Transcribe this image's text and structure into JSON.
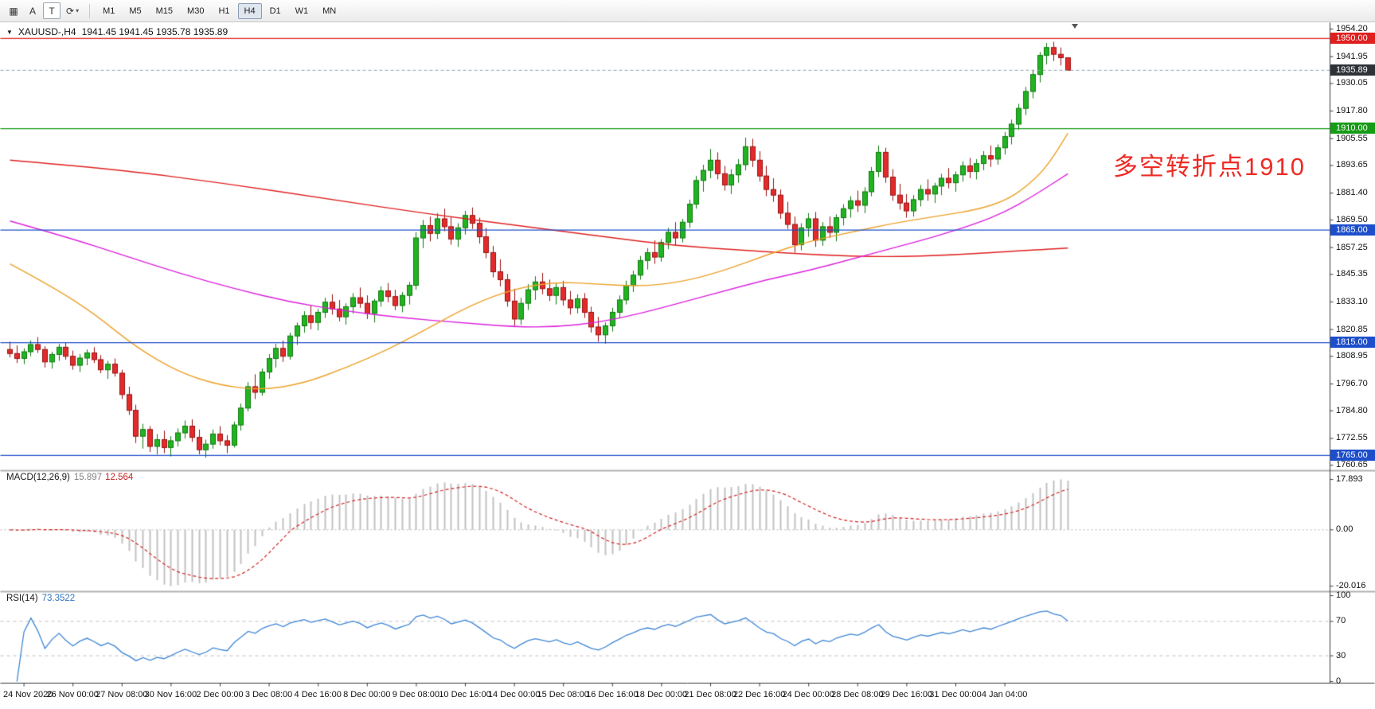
{
  "toolbar": {
    "icon_buttons": [
      {
        "name": "charts-grid",
        "glyph": "▦"
      },
      {
        "name": "text-annotation",
        "glyph": "A"
      },
      {
        "name": "template",
        "glyph": "T"
      },
      {
        "name": "cycle",
        "glyph": "⟳"
      }
    ],
    "timeframes": [
      "M1",
      "M5",
      "M15",
      "M30",
      "H1",
      "H4",
      "D1",
      "W1",
      "MN"
    ],
    "active_timeframe": "H4"
  },
  "chart": {
    "symbol_title": "XAUUSD-,H4",
    "ohlc_text": "1941.45 1941.45 1935.78 1935.89",
    "annotation": {
      "text": "多空转折点1910",
      "color": "#ee2b25"
    }
  },
  "indicators": {
    "macd": {
      "label": "MACD(12,26,9)",
      "main": "15.897",
      "signal": "12.564",
      "scale_labels": [
        "17.893",
        "0.00",
        "-20.016"
      ],
      "scale_values": [
        17.893,
        0,
        -20.016
      ]
    },
    "rsi": {
      "label": "RSI(14)",
      "value": "73.3522",
      "scale_labels": [
        "100",
        "70",
        "30",
        "0"
      ],
      "scale_values": [
        100,
        70,
        30,
        0
      ],
      "levels": [
        70,
        30
      ]
    }
  },
  "chart_data": {
    "type": "candlestick",
    "title": "XAUUSD-,H4",
    "timeframe": "H4",
    "last_ohlc": {
      "open": 1941.45,
      "high": 1941.45,
      "low": 1935.78,
      "close": 1935.89
    },
    "bid": {
      "price": 1935.89,
      "label": "1935.89",
      "color": "#2f3338"
    },
    "y_axis": {
      "range": [
        1760.65,
        1954.2
      ],
      "ticks": [
        "1954.20",
        "1941.95",
        "1930.05",
        "1917.80",
        "1905.55",
        "1893.65",
        "1881.40",
        "1869.50",
        "1857.25",
        "1845.35",
        "1833.10",
        "1820.85",
        "1808.95",
        "1796.70",
        "1784.80",
        "1772.55",
        "1760.65"
      ]
    },
    "time_labels": [
      "24 Nov 2020",
      "26 Nov 00:00",
      "27 Nov 08:00",
      "30 Nov 16:00",
      "2 Dec 00:00",
      "3 Dec 08:00",
      "4 Dec 16:00",
      "8 Dec 00:00",
      "9 Dec 08:00",
      "10 Dec 16:00",
      "14 Dec 00:00",
      "15 Dec 08:00",
      "16 Dec 16:00",
      "18 Dec 00:00",
      "21 Dec 08:00",
      "22 Dec 16:00",
      "24 Dec 00:00",
      "28 Dec 08:00",
      "29 Dec 16:00",
      "31 Dec 00:00",
      "4 Jan 04:00"
    ],
    "horizontal_lines": [
      {
        "price": 1950.0,
        "label": "1950.00",
        "color": "#e01f1f"
      },
      {
        "price": 1910.0,
        "label": "1910.00",
        "color": "#169b16"
      },
      {
        "price": 1865.0,
        "label": "1865.00",
        "color": "#1d4ecb"
      },
      {
        "price": 1815.0,
        "label": "1815.00",
        "color": "#1d4ecb"
      },
      {
        "price": 1765.0,
        "label": "1765.00",
        "color": "#1d4ecb"
      }
    ],
    "moving_averages": [
      {
        "name": "ma-slow-red",
        "color": "#e02222",
        "points": [
          [
            0,
            1896
          ],
          [
            15,
            1892
          ],
          [
            30,
            1886
          ],
          [
            45,
            1879
          ],
          [
            60,
            1872
          ],
          [
            75,
            1866
          ],
          [
            85,
            1862
          ],
          [
            95,
            1858
          ],
          [
            105,
            1856
          ],
          [
            115,
            1854
          ],
          [
            125,
            1853
          ],
          [
            135,
            1854
          ],
          [
            145,
            1856
          ],
          [
            151,
            1857
          ]
        ]
      },
      {
        "name": "ma-mid-magenta",
        "color": "#dd22dd",
        "points": [
          [
            0,
            1869
          ],
          [
            8,
            1862
          ],
          [
            16,
            1854
          ],
          [
            24,
            1846
          ],
          [
            32,
            1839
          ],
          [
            40,
            1833
          ],
          [
            48,
            1829
          ],
          [
            56,
            1826
          ],
          [
            64,
            1824
          ],
          [
            72,
            1822
          ],
          [
            78,
            1822
          ],
          [
            84,
            1824
          ],
          [
            90,
            1828
          ],
          [
            96,
            1833
          ],
          [
            102,
            1838
          ],
          [
            108,
            1843
          ],
          [
            114,
            1847
          ],
          [
            120,
            1852
          ],
          [
            126,
            1857
          ],
          [
            132,
            1862
          ],
          [
            138,
            1868
          ],
          [
            142,
            1873
          ],
          [
            146,
            1880
          ],
          [
            151,
            1890
          ]
        ]
      },
      {
        "name": "ma-fast-orange",
        "color": "#eda22a",
        "points": [
          [
            0,
            1850
          ],
          [
            6,
            1840
          ],
          [
            12,
            1828
          ],
          [
            18,
            1813
          ],
          [
            24,
            1802
          ],
          [
            30,
            1796
          ],
          [
            36,
            1794
          ],
          [
            42,
            1797
          ],
          [
            48,
            1804
          ],
          [
            54,
            1812
          ],
          [
            60,
            1822
          ],
          [
            66,
            1832
          ],
          [
            72,
            1839
          ],
          [
            78,
            1842
          ],
          [
            84,
            1841
          ],
          [
            90,
            1840
          ],
          [
            96,
            1842
          ],
          [
            102,
            1847
          ],
          [
            108,
            1854
          ],
          [
            114,
            1860
          ],
          [
            120,
            1864
          ],
          [
            126,
            1868
          ],
          [
            132,
            1871
          ],
          [
            138,
            1874
          ],
          [
            142,
            1878
          ],
          [
            145,
            1884
          ],
          [
            148,
            1893
          ],
          [
            151,
            1908
          ]
        ]
      }
    ],
    "candles": [
      [
        1812.0,
        1815.5,
        1808.5,
        1810.2
      ],
      [
        1810.2,
        1813.8,
        1806.0,
        1808.0
      ],
      [
        1808.0,
        1812.5,
        1805.5,
        1811.0
      ],
      [
        1811.0,
        1816.0,
        1809.0,
        1814.2
      ],
      [
        1814.2,
        1817.5,
        1810.5,
        1812.0
      ],
      [
        1812.0,
        1813.5,
        1804.0,
        1806.5
      ],
      [
        1806.5,
        1811.0,
        1803.5,
        1809.8
      ],
      [
        1809.8,
        1814.5,
        1807.0,
        1813.0
      ],
      [
        1813.0,
        1815.0,
        1807.5,
        1809.0
      ],
      [
        1809.0,
        1811.5,
        1803.0,
        1805.0
      ],
      [
        1805.0,
        1810.0,
        1802.0,
        1808.2
      ],
      [
        1808.2,
        1812.0,
        1805.0,
        1810.5
      ],
      [
        1810.5,
        1813.0,
        1806.0,
        1807.5
      ],
      [
        1807.5,
        1809.5,
        1801.5,
        1803.0
      ],
      [
        1803.0,
        1807.0,
        1799.0,
        1805.5
      ],
      [
        1805.5,
        1808.0,
        1800.0,
        1801.5
      ],
      [
        1801.5,
        1803.0,
        1790.0,
        1792.0
      ],
      [
        1792.0,
        1795.5,
        1783.0,
        1785.0
      ],
      [
        1785.0,
        1787.5,
        1770.5,
        1773.5
      ],
      [
        1773.5,
        1779.0,
        1768.0,
        1776.5
      ],
      [
        1776.5,
        1778.0,
        1766.5,
        1769.0
      ],
      [
        1769.0,
        1774.5,
        1765.5,
        1772.0
      ],
      [
        1772.0,
        1776.0,
        1766.0,
        1768.5
      ],
      [
        1768.5,
        1773.5,
        1764.5,
        1771.5
      ],
      [
        1771.5,
        1777.0,
        1769.0,
        1775.0
      ],
      [
        1775.0,
        1780.5,
        1772.5,
        1778.0
      ],
      [
        1778.0,
        1781.0,
        1771.0,
        1773.0
      ],
      [
        1773.0,
        1776.5,
        1765.5,
        1767.5
      ],
      [
        1767.5,
        1772.0,
        1764.0,
        1770.0
      ],
      [
        1770.0,
        1776.5,
        1768.0,
        1774.5
      ],
      [
        1774.5,
        1778.0,
        1769.5,
        1771.5
      ],
      [
        1771.5,
        1774.0,
        1766.0,
        1769.5
      ],
      [
        1769.5,
        1780.0,
        1768.5,
        1778.5
      ],
      [
        1778.5,
        1788.0,
        1776.0,
        1786.0
      ],
      [
        1786.0,
        1797.5,
        1784.5,
        1795.5
      ],
      [
        1795.5,
        1801.0,
        1790.0,
        1793.0
      ],
      [
        1793.0,
        1803.5,
        1791.5,
        1802.0
      ],
      [
        1802.0,
        1810.0,
        1799.0,
        1808.0
      ],
      [
        1808.0,
        1814.5,
        1804.0,
        1812.5
      ],
      [
        1812.5,
        1816.0,
        1806.5,
        1809.0
      ],
      [
        1809.0,
        1819.5,
        1807.5,
        1818.0
      ],
      [
        1818.0,
        1824.0,
        1814.0,
        1822.5
      ],
      [
        1822.5,
        1829.0,
        1819.5,
        1827.0
      ],
      [
        1827.0,
        1831.5,
        1821.0,
        1824.0
      ],
      [
        1824.0,
        1830.0,
        1820.5,
        1828.5
      ],
      [
        1828.5,
        1835.0,
        1826.0,
        1833.0
      ],
      [
        1833.0,
        1836.5,
        1827.5,
        1830.0
      ],
      [
        1830.0,
        1834.0,
        1824.5,
        1826.5
      ],
      [
        1826.5,
        1832.5,
        1823.0,
        1831.0
      ],
      [
        1831.0,
        1837.0,
        1828.0,
        1835.0
      ],
      [
        1835.0,
        1839.5,
        1830.5,
        1832.5
      ],
      [
        1832.5,
        1836.0,
        1825.5,
        1828.0
      ],
      [
        1828.0,
        1834.5,
        1824.0,
        1833.5
      ],
      [
        1833.5,
        1840.0,
        1831.0,
        1838.0
      ],
      [
        1838.0,
        1841.5,
        1833.0,
        1835.5
      ],
      [
        1835.5,
        1838.5,
        1829.5,
        1831.5
      ],
      [
        1831.5,
        1837.5,
        1828.5,
        1836.0
      ],
      [
        1836.0,
        1842.0,
        1832.0,
        1840.5
      ],
      [
        1840.5,
        1864.0,
        1838.5,
        1861.5
      ],
      [
        1861.5,
        1869.5,
        1857.0,
        1867.0
      ],
      [
        1867.0,
        1871.0,
        1860.0,
        1863.5
      ],
      [
        1863.5,
        1872.5,
        1861.0,
        1870.0
      ],
      [
        1870.0,
        1874.5,
        1864.5,
        1866.5
      ],
      [
        1866.5,
        1871.0,
        1858.5,
        1861.0
      ],
      [
        1861.0,
        1868.0,
        1857.5,
        1866.0
      ],
      [
        1866.0,
        1873.5,
        1863.0,
        1871.5
      ],
      [
        1871.5,
        1875.0,
        1865.5,
        1868.0
      ],
      [
        1868.0,
        1870.5,
        1859.0,
        1862.0
      ],
      [
        1862.0,
        1866.0,
        1852.5,
        1855.0
      ],
      [
        1855.0,
        1858.0,
        1844.0,
        1846.5
      ],
      [
        1846.5,
        1852.0,
        1840.0,
        1843.0
      ],
      [
        1843.0,
        1845.5,
        1831.0,
        1833.5
      ],
      [
        1833.5,
        1839.0,
        1822.5,
        1825.5
      ],
      [
        1825.5,
        1835.0,
        1823.0,
        1832.5
      ],
      [
        1832.5,
        1841.0,
        1829.5,
        1838.5
      ],
      [
        1838.5,
        1844.5,
        1834.0,
        1842.0
      ],
      [
        1842.0,
        1846.0,
        1836.5,
        1839.0
      ],
      [
        1839.0,
        1843.0,
        1833.5,
        1836.0
      ],
      [
        1836.0,
        1841.5,
        1832.0,
        1839.5
      ],
      [
        1839.5,
        1842.5,
        1831.5,
        1834.0
      ],
      [
        1834.0,
        1838.0,
        1827.5,
        1830.5
      ],
      [
        1830.5,
        1836.5,
        1828.0,
        1834.5
      ],
      [
        1834.5,
        1837.0,
        1826.0,
        1828.5
      ],
      [
        1828.5,
        1831.0,
        1819.5,
        1822.0
      ],
      [
        1822.0,
        1826.5,
        1815.5,
        1818.5
      ],
      [
        1818.5,
        1824.0,
        1814.5,
        1822.5
      ],
      [
        1822.5,
        1830.5,
        1820.0,
        1828.5
      ],
      [
        1828.5,
        1836.0,
        1826.0,
        1834.0
      ],
      [
        1834.0,
        1842.5,
        1832.0,
        1840.5
      ],
      [
        1840.5,
        1847.0,
        1837.5,
        1845.0
      ],
      [
        1845.0,
        1853.5,
        1843.0,
        1851.5
      ],
      [
        1851.5,
        1857.0,
        1847.5,
        1855.0
      ],
      [
        1855.0,
        1860.5,
        1850.0,
        1853.0
      ],
      [
        1853.0,
        1861.0,
        1851.0,
        1859.5
      ],
      [
        1859.5,
        1866.0,
        1856.5,
        1864.0
      ],
      [
        1864.0,
        1868.5,
        1858.0,
        1861.5
      ],
      [
        1861.5,
        1870.0,
        1859.5,
        1868.5
      ],
      [
        1868.5,
        1878.5,
        1866.0,
        1876.5
      ],
      [
        1876.5,
        1889.0,
        1874.5,
        1887.0
      ],
      [
        1887.0,
        1894.0,
        1882.0,
        1891.5
      ],
      [
        1891.5,
        1901.0,
        1888.0,
        1896.0
      ],
      [
        1896.0,
        1899.5,
        1887.5,
        1890.0
      ],
      [
        1890.0,
        1893.5,
        1882.5,
        1885.0
      ],
      [
        1885.0,
        1892.0,
        1881.0,
        1889.5
      ],
      [
        1889.5,
        1896.5,
        1886.0,
        1894.0
      ],
      [
        1894.0,
        1906.0,
        1891.5,
        1902.0
      ],
      [
        1902.0,
        1905.5,
        1893.0,
        1896.0
      ],
      [
        1896.0,
        1900.0,
        1886.5,
        1889.0
      ],
      [
        1889.0,
        1893.5,
        1880.0,
        1883.0
      ],
      [
        1883.0,
        1888.0,
        1877.5,
        1880.5
      ],
      [
        1880.5,
        1883.0,
        1870.0,
        1872.5
      ],
      [
        1872.5,
        1877.5,
        1865.5,
        1867.5
      ],
      [
        1867.5,
        1871.0,
        1855.0,
        1858.5
      ],
      [
        1858.5,
        1868.0,
        1856.0,
        1866.0
      ],
      [
        1866.0,
        1872.5,
        1862.0,
        1870.0
      ],
      [
        1870.0,
        1873.0,
        1857.5,
        1860.5
      ],
      [
        1860.5,
        1868.5,
        1858.0,
        1866.5
      ],
      [
        1866.5,
        1871.0,
        1861.5,
        1864.0
      ],
      [
        1864.0,
        1872.0,
        1860.0,
        1870.5
      ],
      [
        1870.5,
        1876.5,
        1867.0,
        1874.5
      ],
      [
        1874.5,
        1880.0,
        1870.5,
        1878.0
      ],
      [
        1878.0,
        1882.5,
        1873.0,
        1876.0
      ],
      [
        1876.0,
        1884.0,
        1872.5,
        1882.0
      ],
      [
        1882.0,
        1893.0,
        1880.0,
        1891.0
      ],
      [
        1891.0,
        1902.5,
        1888.5,
        1899.5
      ],
      [
        1899.5,
        1901.5,
        1886.0,
        1888.5
      ],
      [
        1888.5,
        1892.0,
        1878.0,
        1880.5
      ],
      [
        1880.5,
        1885.5,
        1874.0,
        1877.0
      ],
      [
        1877.0,
        1881.0,
        1870.5,
        1873.5
      ],
      [
        1873.5,
        1880.5,
        1871.0,
        1878.5
      ],
      [
        1878.5,
        1885.0,
        1875.5,
        1883.0
      ],
      [
        1883.0,
        1887.5,
        1878.0,
        1881.0
      ],
      [
        1881.0,
        1886.0,
        1877.0,
        1884.5
      ],
      [
        1884.5,
        1890.0,
        1880.5,
        1888.0
      ],
      [
        1888.0,
        1892.5,
        1883.5,
        1886.0
      ],
      [
        1886.0,
        1891.0,
        1882.0,
        1889.5
      ],
      [
        1889.5,
        1895.5,
        1886.5,
        1893.5
      ],
      [
        1893.5,
        1897.0,
        1888.0,
        1891.0
      ],
      [
        1891.0,
        1896.5,
        1887.5,
        1894.5
      ],
      [
        1894.5,
        1900.0,
        1891.5,
        1898.0
      ],
      [
        1898.0,
        1902.5,
        1893.0,
        1896.5
      ],
      [
        1896.5,
        1903.0,
        1894.0,
        1901.5
      ],
      [
        1901.5,
        1908.5,
        1898.5,
        1906.5
      ],
      [
        1906.5,
        1914.0,
        1903.0,
        1912.0
      ],
      [
        1912.0,
        1921.0,
        1909.5,
        1919.0
      ],
      [
        1919.0,
        1928.5,
        1916.0,
        1926.5
      ],
      [
        1926.5,
        1936.0,
        1923.5,
        1934.0
      ],
      [
        1934.0,
        1944.0,
        1930.5,
        1942.5
      ],
      [
        1942.5,
        1948.0,
        1938.5,
        1946.0
      ],
      [
        1946.0,
        1948.5,
        1940.0,
        1943.0
      ],
      [
        1943.0,
        1946.0,
        1938.0,
        1941.5
      ],
      [
        1941.45,
        1941.45,
        1935.78,
        1935.89
      ]
    ]
  }
}
